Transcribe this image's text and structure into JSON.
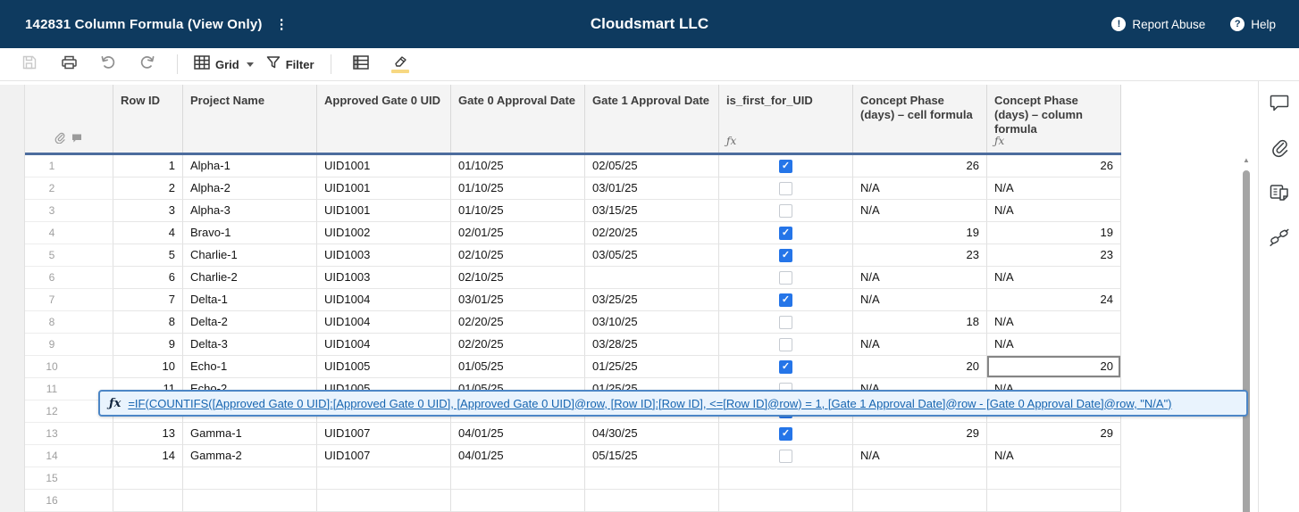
{
  "app_header": {
    "sheet_title": "142831 Column Formula (View Only)",
    "kebab": "⋮",
    "org_name": "Cloudsmart LLC",
    "report_abuse": "Report Abuse",
    "help": "Help"
  },
  "toolbar": {
    "view_label": "Grid",
    "filter_label": "Filter",
    "icons": [
      "save-icon",
      "print-icon",
      "undo-icon",
      "redo-icon",
      "grid-view-icon",
      "filter-icon",
      "format-rows-icon",
      "highlight-format-icon"
    ]
  },
  "grid": {
    "fx_badge": "ƒx",
    "columns": [
      {
        "label": "Row ID"
      },
      {
        "label": "Project Name"
      },
      {
        "label": "Approved Gate 0 UID"
      },
      {
        "label": "Gate 0 Approval Date"
      },
      {
        "label": "Gate 1 Approval Date"
      },
      {
        "label": "is_first_for_UID",
        "fx": true
      },
      {
        "label": "Concept Phase (days) – cell formula"
      },
      {
        "label": "Concept Phase (days) – column formula",
        "fx": true
      }
    ],
    "rows": [
      {
        "num": "1",
        "row_id": "1",
        "project": "Alpha-1",
        "uid": "UID1001",
        "gate0": "01/10/25",
        "gate1": "02/05/25",
        "checked": true,
        "cell_formula": "26",
        "column_formula": "26"
      },
      {
        "num": "2",
        "row_id": "2",
        "project": "Alpha-2",
        "uid": "UID1001",
        "gate0": "01/10/25",
        "gate1": "03/01/25",
        "checked": false,
        "cell_formula": "N/A",
        "column_formula": "N/A"
      },
      {
        "num": "3",
        "row_id": "3",
        "project": "Alpha-3",
        "uid": "UID1001",
        "gate0": "01/10/25",
        "gate1": "03/15/25",
        "checked": false,
        "cell_formula": "N/A",
        "column_formula": "N/A"
      },
      {
        "num": "4",
        "row_id": "4",
        "project": "Bravo-1",
        "uid": "UID1002",
        "gate0": "02/01/25",
        "gate1": "02/20/25",
        "checked": true,
        "cell_formula": "19",
        "column_formula": "19"
      },
      {
        "num": "5",
        "row_id": "5",
        "project": "Charlie-1",
        "uid": "UID1003",
        "gate0": "02/10/25",
        "gate1": "03/05/25",
        "checked": true,
        "cell_formula": "23",
        "column_formula": "23"
      },
      {
        "num": "6",
        "row_id": "6",
        "project": "Charlie-2",
        "uid": "UID1003",
        "gate0": "02/10/25",
        "gate1": "",
        "checked": false,
        "cell_formula": "N/A",
        "column_formula": "N/A"
      },
      {
        "num": "7",
        "row_id": "7",
        "project": "Delta-1",
        "uid": "UID1004",
        "gate0": "03/01/25",
        "gate1": "03/25/25",
        "checked": true,
        "cell_formula": "N/A",
        "column_formula": "24"
      },
      {
        "num": "8",
        "row_id": "8",
        "project": "Delta-2",
        "uid": "UID1004",
        "gate0": "02/20/25",
        "gate1": "03/10/25",
        "checked": false,
        "cell_formula": "18",
        "column_formula": "N/A"
      },
      {
        "num": "9",
        "row_id": "9",
        "project": "Delta-3",
        "uid": "UID1004",
        "gate0": "02/20/25",
        "gate1": "03/28/25",
        "checked": false,
        "cell_formula": "N/A",
        "column_formula": "N/A"
      },
      {
        "num": "10",
        "row_id": "10",
        "project": "Echo-1",
        "uid": "UID1005",
        "gate0": "01/05/25",
        "gate1": "01/25/25",
        "checked": true,
        "cell_formula": "20",
        "column_formula": "20",
        "selected": "column_formula"
      },
      {
        "num": "11",
        "row_id": "11",
        "project": "Echo-2",
        "uid": "UID1005",
        "gate0": "01/05/25",
        "gate1": "01/25/25",
        "checked": false,
        "cell_formula": "N/A",
        "column_formula": "N/A"
      },
      {
        "num": "12",
        "row_id": "",
        "project": "",
        "uid": "",
        "gate0": "",
        "gate1": "",
        "checked": true,
        "cell_formula": "",
        "column_formula": ""
      },
      {
        "num": "13",
        "row_id": "13",
        "project": "Gamma-1",
        "uid": "UID1007",
        "gate0": "04/01/25",
        "gate1": "04/30/25",
        "checked": true,
        "cell_formula": "29",
        "column_formula": "29"
      },
      {
        "num": "14",
        "row_id": "14",
        "project": "Gamma-2",
        "uid": "UID1007",
        "gate0": "04/01/25",
        "gate1": "05/15/25",
        "checked": false,
        "cell_formula": "N/A",
        "column_formula": "N/A"
      },
      {
        "num": "15",
        "row_id": "",
        "project": "",
        "uid": "",
        "gate0": "",
        "gate1": "",
        "checked": null,
        "cell_formula": "",
        "column_formula": ""
      },
      {
        "num": "16",
        "row_id": "",
        "project": "",
        "uid": "",
        "gate0": "",
        "gate1": "",
        "checked": null,
        "cell_formula": "",
        "column_formula": ""
      }
    ],
    "selected_cell": {
      "row_num": "10",
      "column": "Concept Phase (days) – column formula"
    }
  },
  "formula_tooltip": {
    "fx_label": "ƒx",
    "formula": "=IF(COUNTIFS([Approved Gate 0 UID]:[Approved Gate 0 UID], [Approved Gate 0 UID]@row, [Row ID]:[Row ID], <=[Row ID]@row) = 1, [Gate 1 Approval Date]@row - [Gate 0 Approval Date]@row, \"N/A\")"
  },
  "sidebar": {
    "icons": [
      "comments",
      "attachments",
      "sheet-summary",
      "connections"
    ]
  },
  "colors": {
    "header_navy": "#0e3a5f",
    "header_divider_blue": "#4d6d9e",
    "checkbox_blue": "#2575e8",
    "formula_link_blue": "#1765b0",
    "tooltip_background": "#e9f3fd",
    "tooltip_border": "#4c86c6",
    "highlight_yellow": "#f7d882"
  }
}
